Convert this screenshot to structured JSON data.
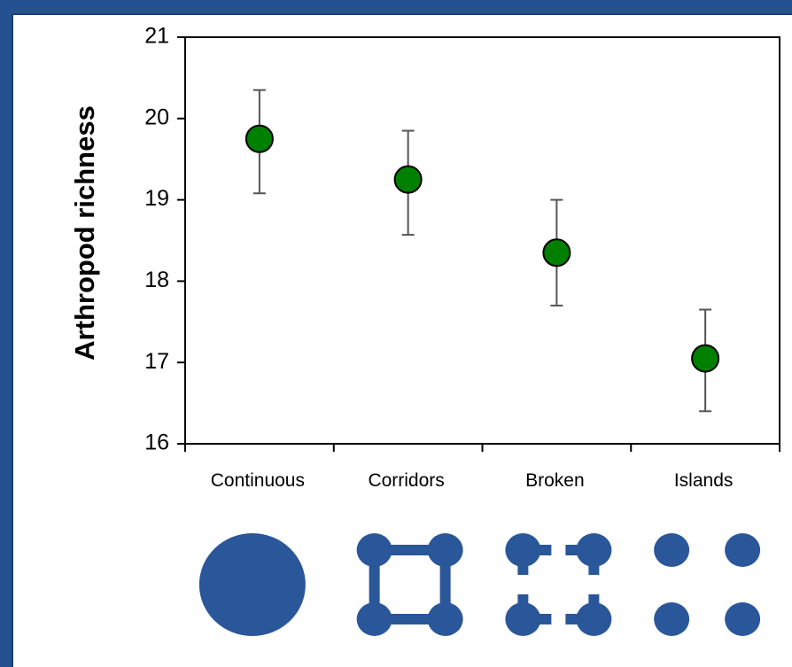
{
  "chart_data": {
    "type": "scatter",
    "categories": [
      "Continuous",
      "Corridors",
      "Broken",
      "Islands"
    ],
    "series": [
      {
        "values": [
          19.75,
          19.25,
          18.35,
          17.05
        ],
        "error_lower": [
          19.08,
          18.57,
          17.7,
          16.4
        ],
        "error_upper": [
          20.35,
          19.85,
          19.0,
          17.65
        ]
      }
    ],
    "title": "",
    "xlabel": "",
    "ylabel": "Arthropod richness",
    "ylim": [
      16,
      21
    ],
    "yticks": [
      16,
      17,
      18,
      19,
      20,
      21
    ],
    "grid": false,
    "legend": "none",
    "marker_color": "#008000",
    "landscape_icon_color": "#2a569a",
    "landscape_icons": [
      "continuous-patch-icon",
      "corridors-patch-icon",
      "broken-corridors-patch-icon",
      "islands-patch-icon"
    ]
  }
}
